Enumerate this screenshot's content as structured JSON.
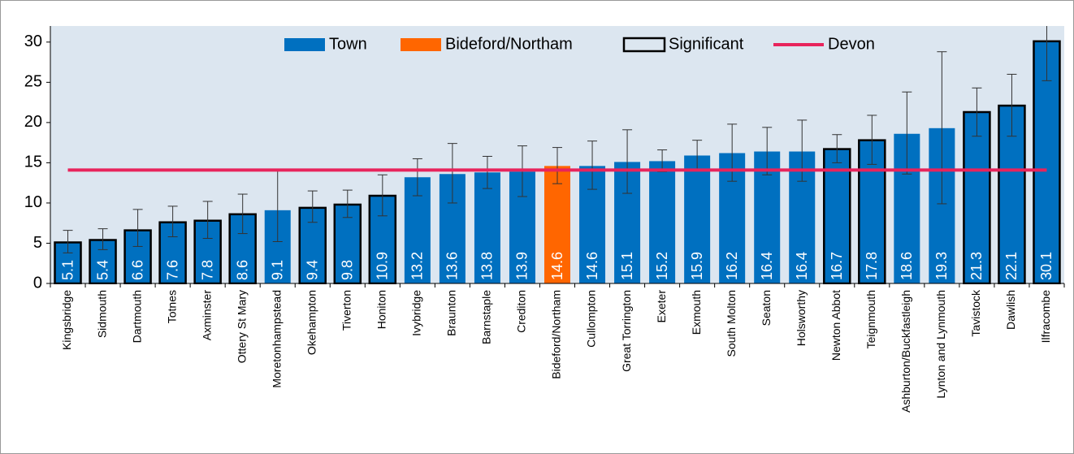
{
  "chart_data": {
    "type": "bar",
    "categories": [
      "Kingsbridge",
      "Sidmouth",
      "Dartmouth",
      "Totnes",
      "Axminster",
      "Ottery St Mary",
      "Moretonhampstead",
      "Okehampton",
      "Tiverton",
      "Honiton",
      "Ivybridge",
      "Braunton",
      "Barnstaple",
      "Crediton",
      "Bideford/Northam",
      "Cullompton",
      "Great Torrington",
      "Exeter",
      "Exmouth",
      "South Molton",
      "Seaton",
      "Holsworthy",
      "Newton Abbot",
      "Teignmouth",
      "Ashburton/Buckfastleigh",
      "Lynton and Lynmouth",
      "Tavistock",
      "Dawlish",
      "Ilfracombe"
    ],
    "values": [
      5.1,
      5.4,
      6.6,
      7.6,
      7.8,
      8.6,
      9.1,
      9.4,
      9.8,
      10.9,
      13.2,
      13.6,
      13.8,
      13.9,
      14.6,
      14.6,
      15.1,
      15.2,
      15.9,
      16.2,
      16.4,
      16.4,
      16.7,
      17.8,
      18.6,
      19.3,
      21.3,
      22.1,
      30.1
    ],
    "error_low": [
      3.8,
      4.2,
      4.6,
      5.8,
      5.6,
      6.2,
      5.2,
      7.6,
      8.2,
      8.4,
      10.9,
      10.0,
      11.8,
      10.8,
      12.4,
      11.7,
      11.2,
      13.9,
      14.0,
      12.7,
      13.5,
      12.7,
      15.0,
      14.8,
      13.6,
      9.9,
      18.3,
      18.3,
      25.2
    ],
    "error_high": [
      6.6,
      6.8,
      9.2,
      9.6,
      10.2,
      11.1,
      14.0,
      11.5,
      11.6,
      13.5,
      15.5,
      17.4,
      15.8,
      17.1,
      16.9,
      17.7,
      19.1,
      16.6,
      17.8,
      19.8,
      19.4,
      20.3,
      18.5,
      20.9,
      23.8,
      28.8,
      24.3,
      26.0,
      35.0
    ],
    "colors": [
      "#0070c0",
      "#0070c0",
      "#0070c0",
      "#0070c0",
      "#0070c0",
      "#0070c0",
      "#0070c0",
      "#0070c0",
      "#0070c0",
      "#0070c0",
      "#0070c0",
      "#0070c0",
      "#0070c0",
      "#0070c0",
      "#ff6600",
      "#0070c0",
      "#0070c0",
      "#0070c0",
      "#0070c0",
      "#0070c0",
      "#0070c0",
      "#0070c0",
      "#0070c0",
      "#0070c0",
      "#0070c0",
      "#0070c0",
      "#0070c0",
      "#0070c0",
      "#0070c0"
    ],
    "significant": [
      true,
      true,
      true,
      true,
      true,
      true,
      false,
      true,
      true,
      true,
      false,
      false,
      false,
      false,
      false,
      false,
      false,
      false,
      false,
      false,
      false,
      false,
      true,
      true,
      false,
      false,
      true,
      true,
      true
    ],
    "reference": {
      "name": "Devon",
      "value": 14.1,
      "color": "#e8245c"
    },
    "legend": [
      {
        "name": "Town",
        "color": "#0070c0"
      },
      {
        "name": "Bideford/Northam",
        "color": "#ff6600"
      },
      {
        "name": "Significant",
        "outline": "#000000"
      }
    ],
    "ylim": [
      0,
      32
    ],
    "yticks": [
      0,
      5,
      10,
      15,
      20,
      25,
      30
    ],
    "plot_background": "#dce6f0"
  }
}
